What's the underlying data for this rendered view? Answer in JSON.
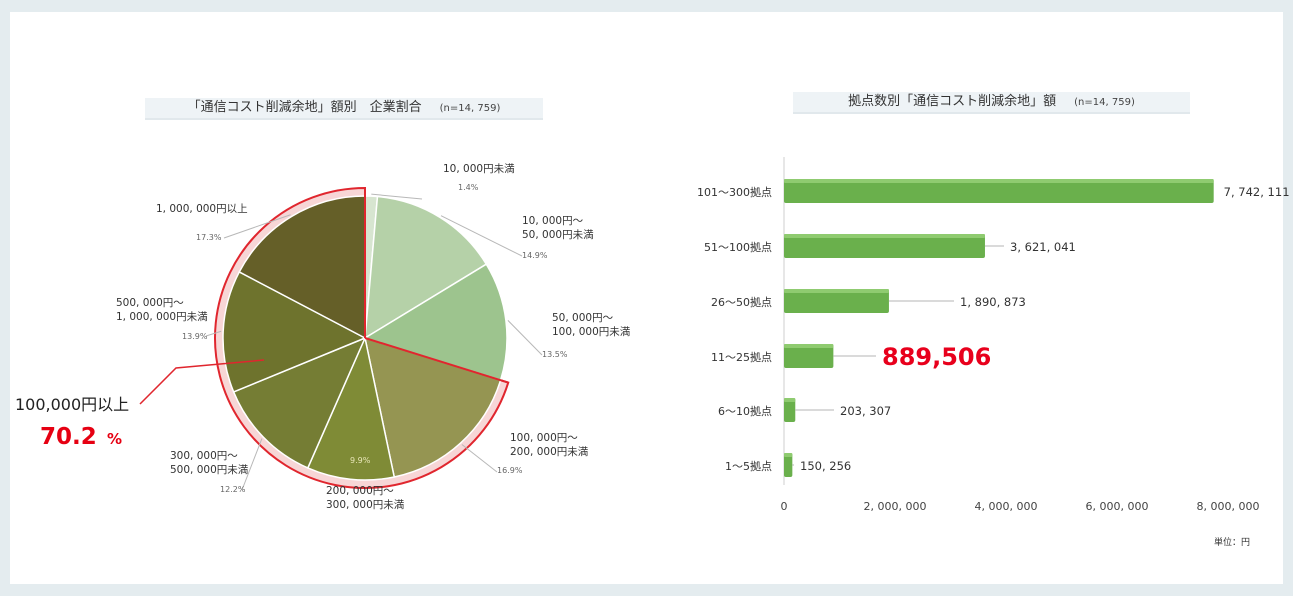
{
  "charts": {
    "pie": {
      "title": "「通信コスト削減余地」額別　企業割合",
      "n_label": "(n=14, 759)",
      "callout_label": "100,000円以上",
      "callout_value": "70.2",
      "callout_unit": "%"
    },
    "bar": {
      "title": "拠点数別「通信コスト削減余地」額",
      "n_label": "(n=14, 759)",
      "unit_label": "単位：円"
    }
  },
  "chart_data": [
    {
      "type": "pie",
      "title": "「通信コスト削減余地」額別　企業割合",
      "slices": [
        {
          "label": [
            "10, 000円未満"
          ],
          "pct_label": "1.4%",
          "value": 1.4,
          "color": "#d7e5d0"
        },
        {
          "label": [
            "10, 000円～",
            "50, 000円未満"
          ],
          "pct_label": "14.9%",
          "value": 14.9,
          "color": "#b5d1a8"
        },
        {
          "label": [
            "50, 000円～",
            "100, 000円未満"
          ],
          "pct_label": "13.5%",
          "value": 13.5,
          "color": "#9dc48e"
        },
        {
          "label": [
            "100, 000円～",
            "200, 000円未満"
          ],
          "pct_label": "16.9%",
          "value": 16.9,
          "color": "#959552"
        },
        {
          "label": [
            "200, 000円～",
            "300, 000円未満"
          ],
          "pct_label": "9.9%",
          "value": 9.9,
          "color": "#7f8b36"
        },
        {
          "label": [
            "300, 000円～",
            "500, 000円未満"
          ],
          "pct_label": "12.2%",
          "value": 12.2,
          "color": "#757d34"
        },
        {
          "label": [
            "500, 000円～",
            "1, 000, 000円未満"
          ],
          "pct_label": "13.9%",
          "value": 13.9,
          "color": "#6e732d"
        },
        {
          "label": [
            "1, 000, 000円以上"
          ],
          "pct_label": "17.3%",
          "value": 17.3,
          "color": "#655f28"
        }
      ]
    },
    {
      "type": "bar",
      "orientation": "horizontal",
      "title": "拠点数別「通信コスト削減余地」額",
      "categories": [
        "101～300拠点",
        "51～100拠点",
        "26～50拠点",
        "11～25拠点",
        "6～10拠点",
        "1～5拠点"
      ],
      "values": [
        7742111,
        3621041,
        1890873,
        889506,
        203307,
        150256
      ],
      "value_labels": [
        "7, 742, 111",
        "3, 621, 041",
        "1, 890, 873",
        "889,506",
        "203, 307",
        "150, 256"
      ],
      "highlight": "11～25拠点",
      "xlim": [
        0,
        8000000
      ],
      "xticks": [
        0,
        2000000,
        4000000,
        6000000,
        8000000
      ],
      "xtick_labels": [
        "0",
        "2, 000, 000",
        "4, 000, 000",
        "6, 000, 000",
        "8, 000, 000"
      ],
      "bar_color": "#6ab04c",
      "highlight_color": "#e8001c"
    }
  ]
}
